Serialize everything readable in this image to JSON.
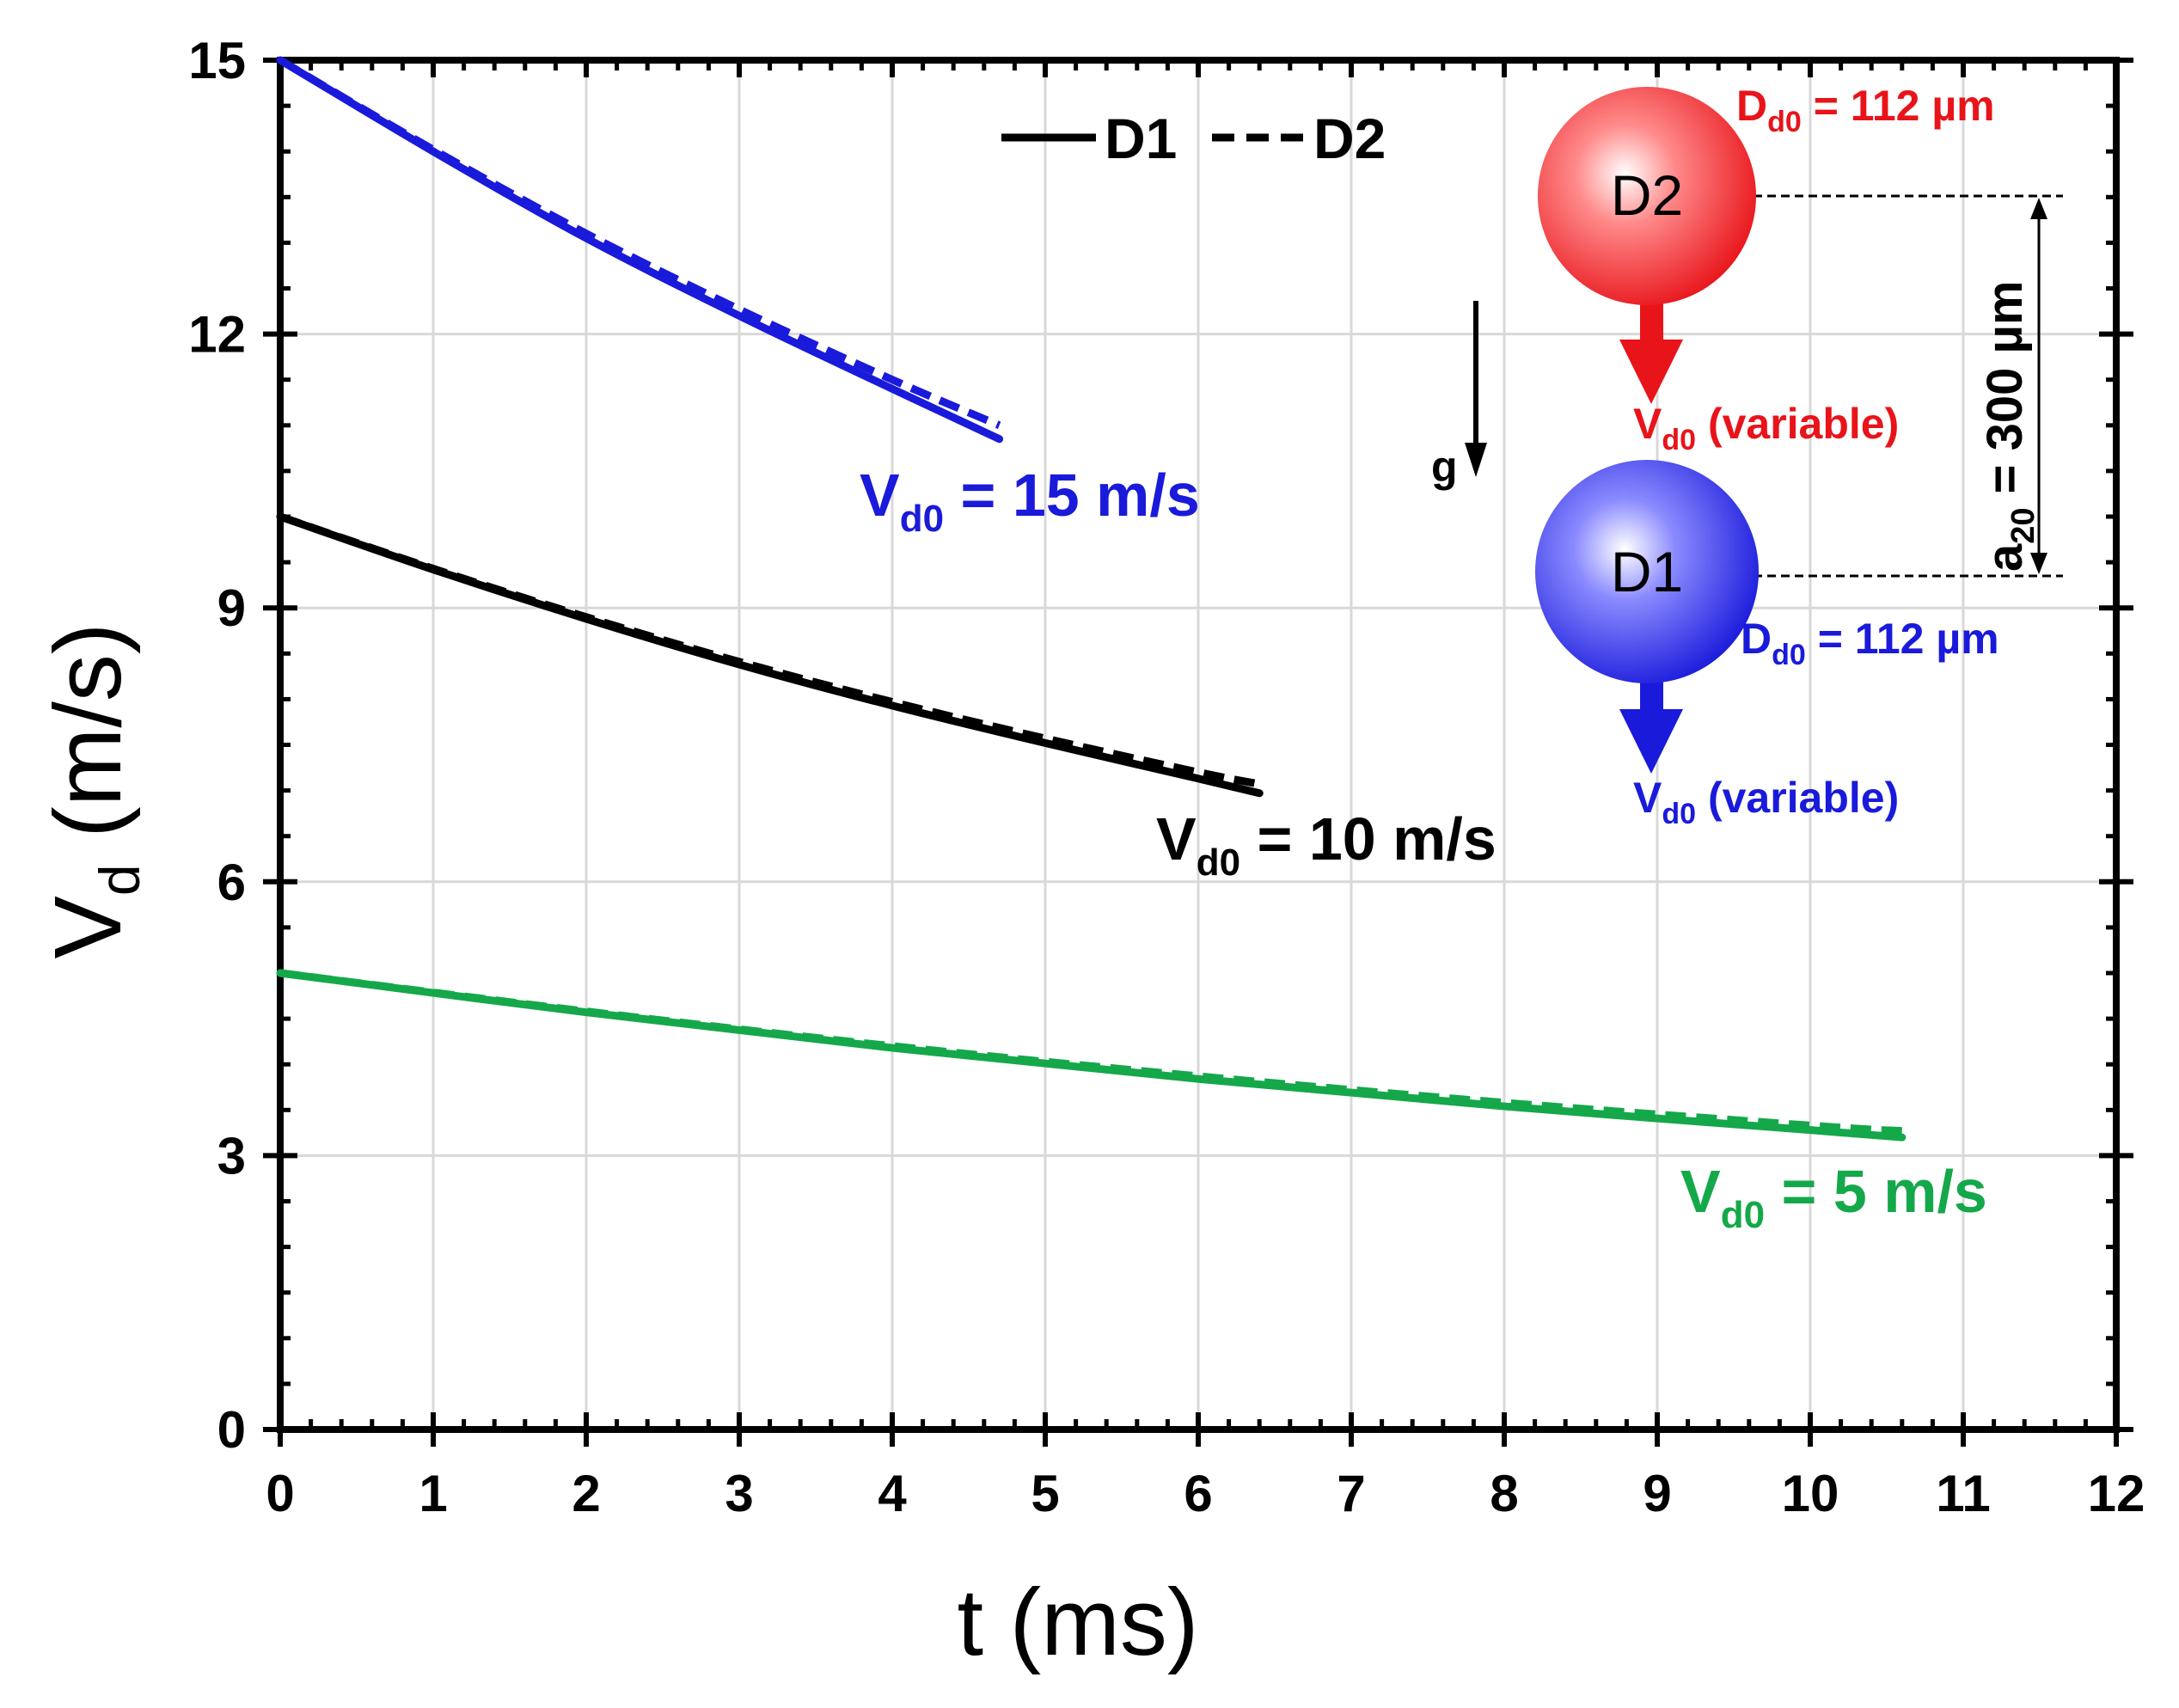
{
  "chart_data": {
    "type": "line",
    "xlabel": "t (ms)",
    "ylabel": {
      "main": "V",
      "sub": "d",
      "unit": " (m/s)"
    },
    "xlim": [
      0,
      12
    ],
    "ylim": [
      0,
      15
    ],
    "xticks": [
      "0",
      "1",
      "2",
      "3",
      "4",
      "5",
      "6",
      "7",
      "8",
      "9",
      "10",
      "11",
      "12"
    ],
    "yticks": [
      "0",
      "3",
      "6",
      "9",
      "12",
      "15"
    ],
    "grid": true,
    "legend": [
      {
        "name": "D1",
        "style": "solid"
      },
      {
        "name": "D2",
        "style": "dashed"
      }
    ],
    "groups": [
      {
        "label_prefix": "V",
        "label_sub": "d0",
        "label_value": " = 15 m/s",
        "color": "#1a1adb",
        "series": [
          {
            "name": "D1",
            "style": "solid",
            "x": [
              0,
              1,
              2,
              3,
              4,
              4.7
            ],
            "y": [
              15,
              14.0,
              13.05,
              12.2,
              11.4,
              10.85
            ]
          },
          {
            "name": "D2",
            "style": "dashed",
            "x": [
              0,
              1,
              2,
              3,
              4,
              4.7
            ],
            "y": [
              15,
              14.02,
              13.1,
              12.27,
              11.5,
              11.0
            ]
          }
        ]
      },
      {
        "label_prefix": "V",
        "label_sub": "d0",
        "label_value": " = 10 m/s",
        "color": "#000000",
        "series": [
          {
            "name": "D1",
            "style": "solid",
            "x": [
              0,
              1,
              2,
              3,
              4,
              5,
              6,
              6.4
            ],
            "y": [
              10,
              9.42,
              8.88,
              8.38,
              7.93,
              7.52,
              7.13,
              6.97
            ]
          },
          {
            "name": "D2",
            "style": "dashed",
            "x": [
              0,
              1,
              2,
              3,
              4,
              5,
              6,
              6.4
            ],
            "y": [
              10,
              9.43,
              8.9,
              8.41,
              7.97,
              7.57,
              7.2,
              7.07
            ]
          }
        ]
      },
      {
        "label_prefix": "V",
        "label_sub": "d0",
        "label_value": " = 5 m/s",
        "color": "#14a84a",
        "series": [
          {
            "name": "D1",
            "style": "solid",
            "x": [
              0,
              2,
              4,
              6,
              8,
              10,
              10.6
            ],
            "y": [
              5,
              4.57,
              4.18,
              3.84,
              3.54,
              3.28,
              3.2
            ]
          },
          {
            "name": "D2",
            "style": "dashed",
            "x": [
              0,
              2,
              4,
              6,
              8,
              10,
              10.6
            ],
            "y": [
              5,
              4.58,
              4.2,
              3.87,
              3.58,
              3.33,
              3.27
            ]
          }
        ]
      }
    ],
    "schematic": {
      "droplet_top": {
        "label": "D2",
        "color": "#e8141a",
        "diameter": {
          "prefix": "D",
          "sub": "d0",
          "value": " = 112 µm"
        },
        "velocity": {
          "prefix": "V",
          "sub": "d0",
          "value": " (variable)"
        }
      },
      "droplet_bottom": {
        "label": "D1",
        "color": "#1a1adb",
        "diameter": {
          "prefix": "D",
          "sub": "d0",
          "value": " = 112 µm"
        },
        "velocity": {
          "prefix": "V",
          "sub": "d0",
          "value": " (variable)"
        }
      },
      "spacing": {
        "prefix": "a",
        "sub": "20",
        "value": " = 300 µm"
      },
      "gravity": "g"
    }
  }
}
